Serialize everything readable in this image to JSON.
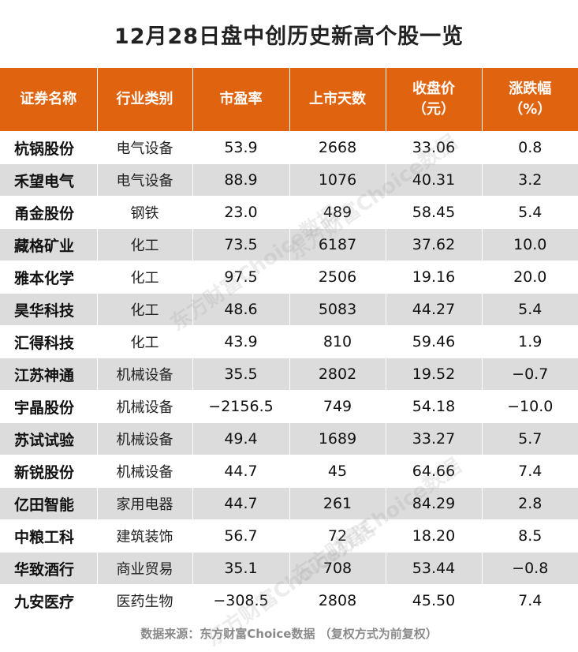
{
  "title": "12月28日盘中创历史新高个股一览",
  "headers": {
    "name": "证券名称",
    "industry": "行业类别",
    "pe": "市盈率",
    "days": "上市天数",
    "close_line1": "收盘价",
    "close_line2": "（元）",
    "change_line1": "涨跌幅",
    "change_line2": "（%）"
  },
  "rows": [
    {
      "name": "杭锅股份",
      "industry": "电气设备",
      "pe": "53.9",
      "days": "2668",
      "close": "33.06",
      "change": "0.8"
    },
    {
      "name": "禾望电气",
      "industry": "电气设备",
      "pe": "88.9",
      "days": "1076",
      "close": "40.31",
      "change": "3.2"
    },
    {
      "name": "甬金股份",
      "industry": "钢铁",
      "pe": "23.0",
      "days": "489",
      "close": "58.45",
      "change": "5.4"
    },
    {
      "name": "藏格矿业",
      "industry": "化工",
      "pe": "73.5",
      "days": "6187",
      "close": "37.62",
      "change": "10.0"
    },
    {
      "name": "雅本化学",
      "industry": "化工",
      "pe": "97.5",
      "days": "2506",
      "close": "19.16",
      "change": "20.0"
    },
    {
      "name": "昊华科技",
      "industry": "化工",
      "pe": "48.6",
      "days": "5083",
      "close": "44.27",
      "change": "5.4"
    },
    {
      "name": "汇得科技",
      "industry": "化工",
      "pe": "43.9",
      "days": "810",
      "close": "59.46",
      "change": "1.9"
    },
    {
      "name": "江苏神通",
      "industry": "机械设备",
      "pe": "35.5",
      "days": "2802",
      "close": "19.52",
      "change": "−0.7"
    },
    {
      "name": "宇晶股份",
      "industry": "机械设备",
      "pe": "−2156.5",
      "days": "749",
      "close": "54.18",
      "change": "−10.0"
    },
    {
      "name": "苏试试验",
      "industry": "机械设备",
      "pe": "49.4",
      "days": "1689",
      "close": "33.27",
      "change": "5.7"
    },
    {
      "name": "新锐股份",
      "industry": "机械设备",
      "pe": "44.7",
      "days": "45",
      "close": "64.66",
      "change": "7.4"
    },
    {
      "name": "亿田智能",
      "industry": "家用电器",
      "pe": "44.7",
      "days": "261",
      "close": "84.29",
      "change": "2.8"
    },
    {
      "name": "中粮工科",
      "industry": "建筑装饰",
      "pe": "56.7",
      "days": "72",
      "close": "18.20",
      "change": "8.5"
    },
    {
      "name": "华致酒行",
      "industry": "商业贸易",
      "pe": "35.1",
      "days": "708",
      "close": "53.44",
      "change": "−0.8"
    },
    {
      "name": "九安医疗",
      "industry": "医药生物",
      "pe": "−308.5",
      "days": "2808",
      "close": "45.50",
      "change": "7.4"
    }
  ],
  "footer": "数据来源：东方财富Choice数据 （复权方式为前复权）",
  "watermark": "东方财富Choice数据",
  "colors": {
    "header_bg": "#e0630f",
    "stripe": "#dcdcdc"
  }
}
